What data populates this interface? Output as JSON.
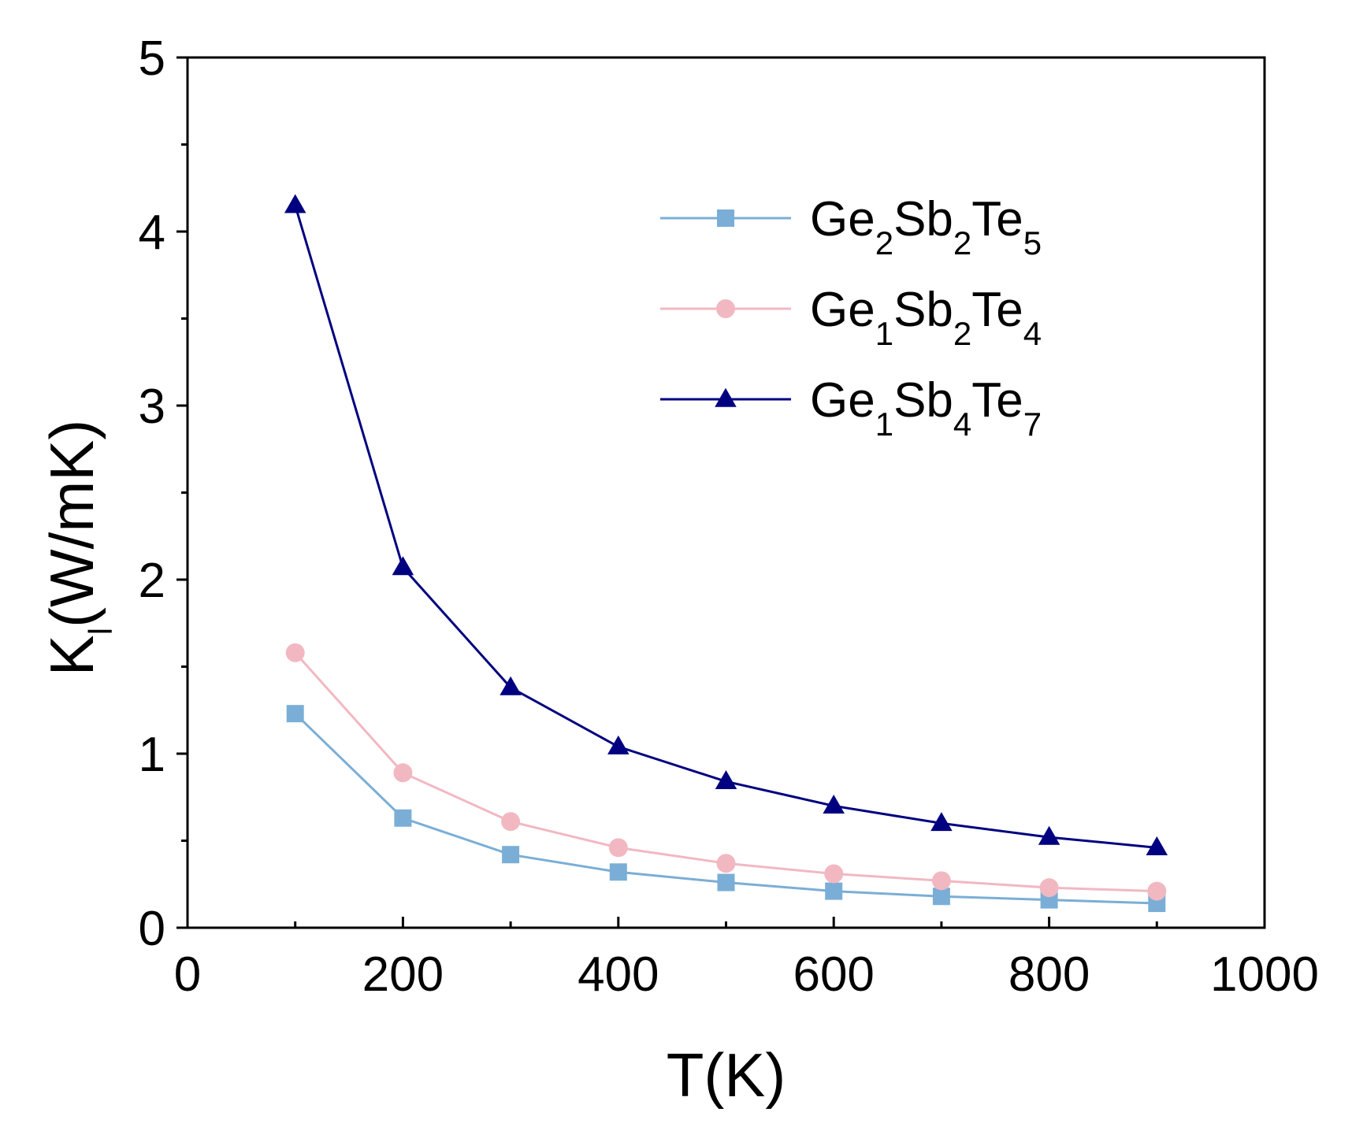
{
  "chart_data": {
    "type": "line",
    "title": "",
    "xlabel": "T(K)",
    "ylabel": {
      "base": "K",
      "subscript": "l",
      "rest": "(W/mK)"
    },
    "xlim": [
      0,
      1000
    ],
    "ylim": [
      0,
      5
    ],
    "x_ticks": [
      0,
      200,
      400,
      600,
      800,
      1000
    ],
    "y_ticks": [
      0,
      1,
      2,
      3,
      4,
      5
    ],
    "x_minor_step": 100,
    "y_minor_step": 0.5,
    "grid": false,
    "legend_position": "top-right",
    "x": [
      100,
      200,
      300,
      400,
      500,
      600,
      700,
      800,
      900
    ],
    "series": [
      {
        "name": "Ge2Sb2Te5",
        "label_parts": [
          {
            "text": "Ge",
            "sub": false
          },
          {
            "text": "2",
            "sub": true
          },
          {
            "text": "Sb",
            "sub": false
          },
          {
            "text": "2",
            "sub": true
          },
          {
            "text": "Te",
            "sub": false
          },
          {
            "text": "5",
            "sub": true
          }
        ],
        "color": "#7aaed6",
        "marker": "square",
        "values": [
          1.23,
          0.63,
          0.42,
          0.32,
          0.26,
          0.21,
          0.18,
          0.16,
          0.14
        ]
      },
      {
        "name": "Ge1Sb2Te4",
        "label_parts": [
          {
            "text": "Ge",
            "sub": false
          },
          {
            "text": "1",
            "sub": true
          },
          {
            "text": "Sb",
            "sub": false
          },
          {
            "text": "2",
            "sub": true
          },
          {
            "text": "Te",
            "sub": false
          },
          {
            "text": "4",
            "sub": true
          }
        ],
        "color": "#f2b8c2",
        "marker": "circle",
        "values": [
          1.58,
          0.89,
          0.61,
          0.46,
          0.37,
          0.31,
          0.27,
          0.23,
          0.21
        ]
      },
      {
        "name": "Ge1Sb4Te7",
        "label_parts": [
          {
            "text": "Ge",
            "sub": false
          },
          {
            "text": "1",
            "sub": true
          },
          {
            "text": "Sb",
            "sub": false
          },
          {
            "text": "4",
            "sub": true
          },
          {
            "text": "Te",
            "sub": false
          },
          {
            "text": "7",
            "sub": true
          }
        ],
        "color": "#000080",
        "marker": "triangle",
        "values": [
          4.15,
          2.07,
          1.38,
          1.04,
          0.84,
          0.7,
          0.6,
          0.52,
          0.46
        ]
      }
    ]
  }
}
